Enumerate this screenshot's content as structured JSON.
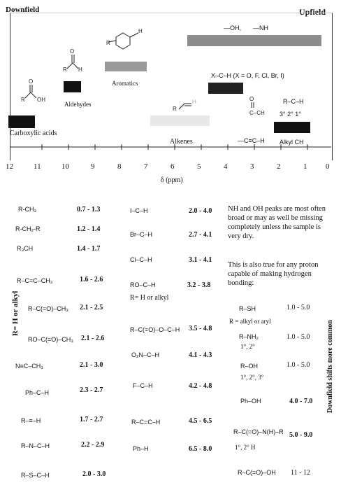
{
  "header": {
    "left": "Downfield",
    "right": "Upfield"
  },
  "chart": {
    "bars": [
      {
        "label_a": "—OH,",
        "label_b": "—NH",
        "name": "oh-nh-bar"
      },
      {
        "label": "Aromatics"
      },
      {
        "label": "Aldehydes"
      },
      {
        "label": "Carboxylic acids"
      },
      {
        "label": "X–C–H  (X = O, F, Cl, Br, I)"
      },
      {
        "label": "Alkenes"
      },
      {
        "label_a": "—C≡C–H",
        "label_b": "Alkyl CH"
      }
    ],
    "alkyl_degrees": "3°  2°  1°",
    "rch": "R–C–H",
    "axis_ticks": [
      "12",
      "11",
      "10",
      "9",
      "8",
      "7",
      "6",
      "5",
      "4",
      "3",
      "2",
      "1",
      "0"
    ],
    "axis_label": "δ (ppm)"
  },
  "table": {
    "side_label": "R= H or alkyl",
    "col1": [
      {
        "group": "R-CH₃",
        "range": "0.7 - 1.3"
      },
      {
        "group": "R-CH₂-R",
        "range": "1.2 - 1.4"
      },
      {
        "group": "R₃CH",
        "range": "1.4 - 1.7"
      },
      {
        "group": "R–C=C–CH₃",
        "range": "1.6 - 2.6"
      },
      {
        "group": "R–C(=O)–CH₃",
        "range": "2.1 - 2.5"
      },
      {
        "group": "RO–C(=O)–CH₃",
        "range": "2.1 - 2.6"
      },
      {
        "group": "N≡C–CH₃",
        "range": "2.1 - 3.0"
      },
      {
        "group": "Ph–C–H",
        "range": "2.3 - 2.7"
      },
      {
        "group": "R–≡–H",
        "range": "1.7 - 2.7"
      },
      {
        "group": "R–N–C–H",
        "range": "2.2 - 2.9"
      },
      {
        "group": "R–S–C–H",
        "range": "2.0 - 3.0"
      }
    ],
    "col2": [
      {
        "group": "I–C–H",
        "range": "2.0 - 4.0"
      },
      {
        "group": "Br–C–H",
        "range": "2.7 - 4.1"
      },
      {
        "group": "Cl–C–H",
        "range": "3.1 - 4.1"
      },
      {
        "group": "RO–C–H",
        "range": "3.2 - 3.8"
      },
      {
        "group": "R–C(=O)–O–C–H",
        "range": "3.5 - 4.8"
      },
      {
        "group": "O₂N–C–H",
        "range": "4.1 - 4.3"
      },
      {
        "group": "F–C–H",
        "range": "4.2 - 4.8"
      },
      {
        "group": "R–C=C–H",
        "range": "4.5 - 6.5"
      },
      {
        "group": "Ph–H",
        "range": "6.5 - 8.0"
      }
    ],
    "col2_note": "R= H or alkyl",
    "col3_note1": "NH and OH peaks are most often broad or may as well be missing completely unless the sample is very dry.",
    "col3_note2": "This is also true for any proton capable of making hydrogen bonding:",
    "col3": [
      {
        "group": "R–SH",
        "range": "1.0 - 5.0",
        "sub": "R = alkyl or aryl"
      },
      {
        "group": "R–NH₂",
        "range": "1.0 - 5.0",
        "sub": "1°, 2°"
      },
      {
        "group": "R–OH",
        "range": "1.0 - 5.0",
        "sub": "1°, 2°, 3°"
      },
      {
        "group": "Ph–OH",
        "range": "4.0 - 7.0"
      },
      {
        "group": "R–C(=O)–N(H)–R",
        "range": "5.0 - 9.0",
        "sub": "1°, 2°  H"
      },
      {
        "group": "R–C(=O)–OH",
        "range": "11 - 12"
      }
    ],
    "right_label": "Downfield shifts more common"
  }
}
